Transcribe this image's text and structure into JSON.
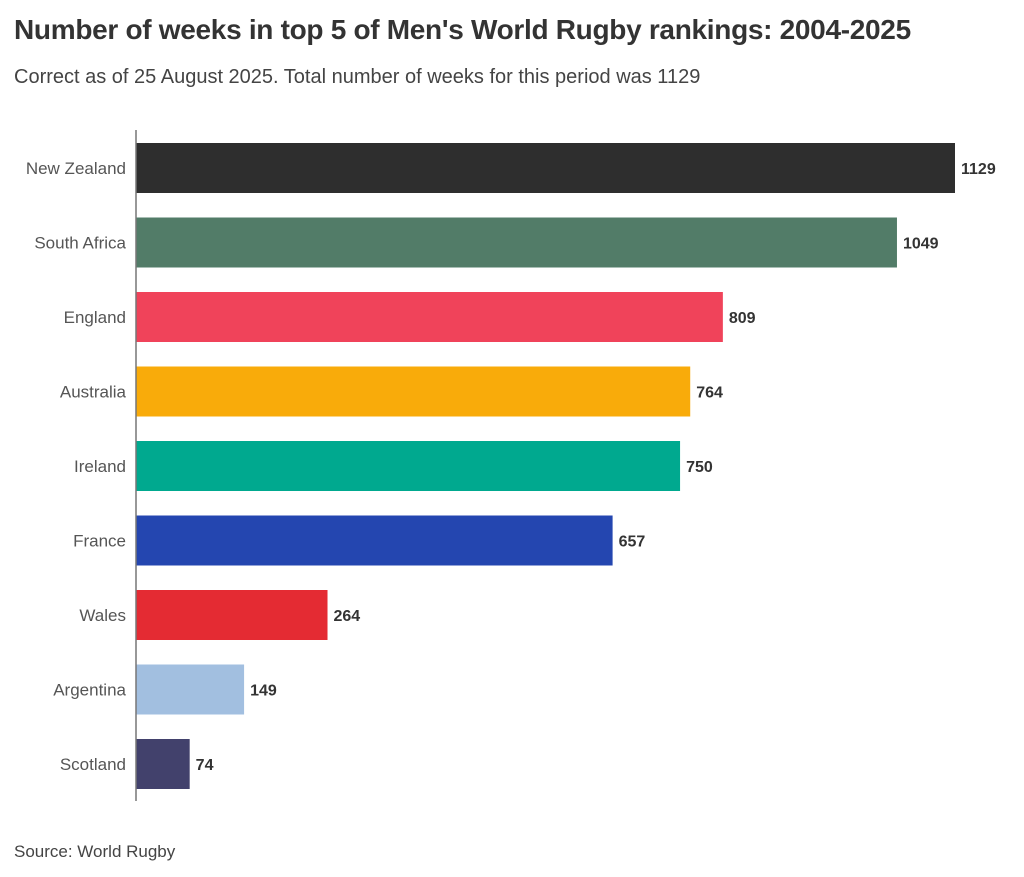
{
  "chart_data": {
    "type": "bar",
    "orientation": "horizontal",
    "title": "Number of weeks in top 5 of Men's World Rugby rankings: 2004-2025",
    "subtitle": "Correct as of 25 August 2025. Total number of weeks for this period was 1129",
    "source": "Source: World Rugby",
    "xlabel": "",
    "ylabel": "",
    "xlim": [
      0,
      1129
    ],
    "grid": false,
    "legend": "none",
    "categories": [
      "New Zealand",
      "South Africa",
      "England",
      "Australia",
      "Ireland",
      "France",
      "Wales",
      "Argentina",
      "Scotland"
    ],
    "values": [
      1129,
      1049,
      809,
      764,
      750,
      657,
      264,
      149,
      74
    ],
    "colors": [
      "#2e2e2e",
      "#527c68",
      "#f0435a",
      "#f9ab0a",
      "#00a98f",
      "#2446b0",
      "#e42b33",
      "#a2bfe0",
      "#42416c"
    ]
  }
}
